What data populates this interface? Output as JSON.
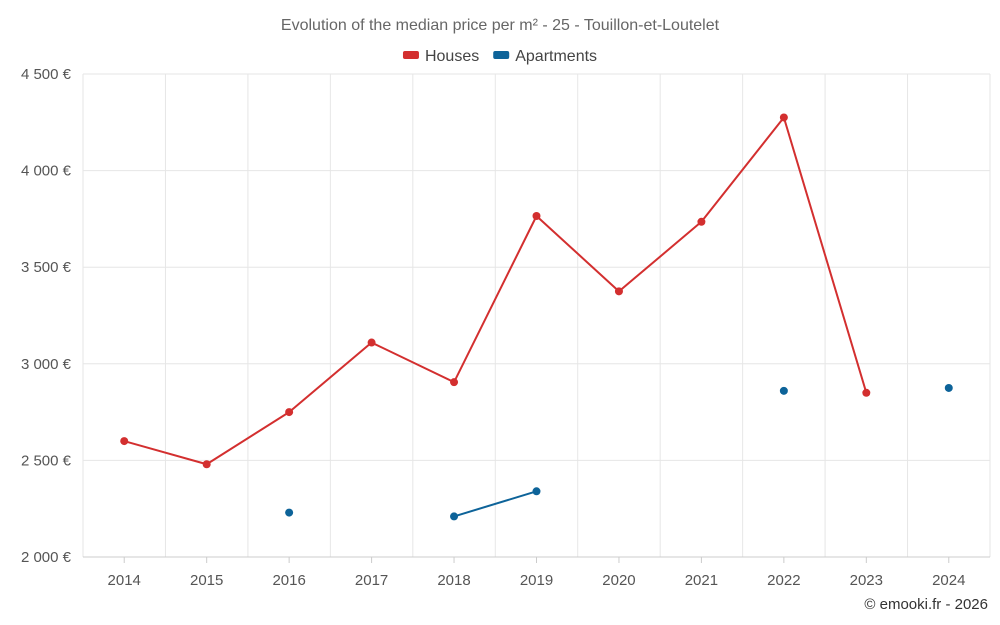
{
  "chart_data": {
    "type": "line",
    "title": "Evolution of the median price per m² - 25 - Touillon-et-Loutelet",
    "categories": [
      "2014",
      "2015",
      "2016",
      "2017",
      "2018",
      "2019",
      "2020",
      "2021",
      "2022",
      "2023",
      "2024"
    ],
    "ylim": [
      2000,
      4500
    ],
    "yticks": [
      2000,
      2500,
      3000,
      3500,
      4000,
      4500
    ],
    "ytick_labels": [
      "2 000 €",
      "2 500 €",
      "3 000 €",
      "3 500 €",
      "4 000 €",
      "4 500 €"
    ],
    "xlabel": "",
    "ylabel": "",
    "grid": true,
    "legend_position": "top-center",
    "series": [
      {
        "name": "Houses",
        "color": "#d32f2f",
        "values": [
          2600,
          2480,
          2750,
          3110,
          2905,
          3765,
          3375,
          3735,
          4275,
          2850,
          null
        ]
      },
      {
        "name": "Apartments",
        "color": "#0d6399",
        "values": [
          null,
          null,
          2230,
          null,
          2210,
          2340,
          null,
          null,
          2860,
          null,
          2875
        ]
      }
    ],
    "credit": "© emooki.fr - 2026"
  }
}
